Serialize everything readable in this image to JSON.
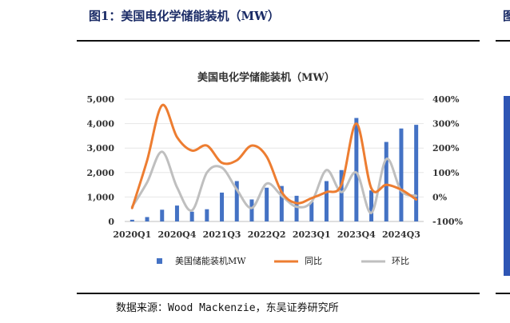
{
  "header": {
    "title": "图1：美国电化学储能装机（MW）"
  },
  "footer": {
    "source": "数据来源：Wood Mackenzie，东吴证券研究所"
  },
  "colors": {
    "bar": "#4472c4",
    "yoy": "#ed7d31",
    "qoq": "#bfbfbf",
    "title_color": "#1a2b66"
  },
  "chart_data": {
    "type": "bar",
    "title": "美国电化学储能装机（MW）",
    "categories": [
      "2020Q1",
      "2020Q2",
      "2020Q3",
      "2020Q4",
      "2021Q1",
      "2021Q2",
      "2021Q3",
      "2021Q4",
      "2022Q1",
      "2022Q2",
      "2022Q3",
      "2022Q4",
      "2023Q1",
      "2023Q2",
      "2023Q3",
      "2023Q4",
      "2024Q1",
      "2024Q2",
      "2024Q3",
      "2024Q4"
    ],
    "tick_labels": [
      "2020Q1",
      "2020Q4",
      "2021Q3",
      "2022Q2",
      "2023Q1",
      "2023Q4",
      "2024Q3"
    ],
    "left_axis": {
      "ticks": [
        "0",
        "1,000",
        "2,000",
        "3,000",
        "4,000",
        "5,000"
      ],
      "ylim": [
        0,
        5000
      ]
    },
    "right_axis": {
      "ticks": [
        "-100%",
        "0%",
        "100%",
        "200%",
        "300%",
        "400%"
      ],
      "ylim": [
        -100,
        400
      ],
      "unit": "%"
    },
    "legend_position": "bottom",
    "series": [
      {
        "name": "美国储能装机MW",
        "type": "bar",
        "axis": "left",
        "values": [
          70,
          180,
          480,
          650,
          400,
          500,
          1180,
          1650,
          900,
          1380,
          1450,
          1050,
          800,
          1650,
          2100,
          4230,
          1270,
          3250,
          3800,
          3950
        ]
      },
      {
        "name": "同比",
        "type": "line",
        "axis": "right",
        "values": [
          -45,
          150,
          375,
          245,
          190,
          210,
          140,
          150,
          210,
          165,
          20,
          -25,
          -5,
          20,
          50,
          300,
          35,
          50,
          30,
          -10
        ]
      },
      {
        "name": "环比",
        "type": "line",
        "axis": "right",
        "values": [
          -40,
          60,
          185,
          40,
          -55,
          100,
          120,
          30,
          -45,
          55,
          5,
          -40,
          -20,
          110,
          20,
          100,
          -65,
          155,
          25,
          5
        ]
      }
    ]
  }
}
